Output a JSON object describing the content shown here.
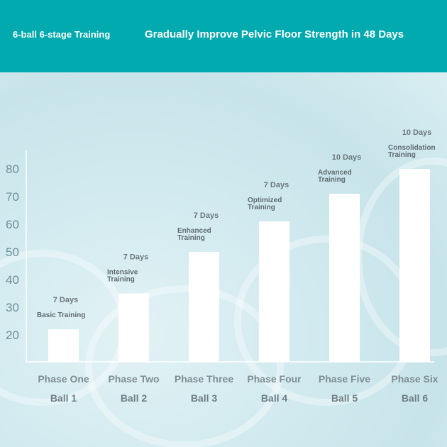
{
  "header": {
    "left_title": "6-ball 6-stage Training",
    "right_title": "Gradually Improve Pelvic Floor Strength in 48 Days",
    "background_color": "#00aaae"
  },
  "chart_data": {
    "type": "bar",
    "yticks": [
      20,
      30,
      40,
      50,
      60,
      70,
      80
    ],
    "ylim": [
      15,
      85
    ],
    "grid": false,
    "bar_color": "#ffffff",
    "bars": [
      {
        "phase": "Phase One",
        "ball": "Ball 1",
        "value": 22,
        "days": "7 Days",
        "label": [
          "Basic Training"
        ]
      },
      {
        "phase": "Phase Two",
        "ball": "Ball 2",
        "value": 35,
        "days": "7 Days",
        "label": [
          "Intensive",
          "Training"
        ]
      },
      {
        "phase": "Phase Three",
        "ball": "Ball 3",
        "value": 50,
        "days": "7 Days",
        "label": [
          "Enhanced",
          "Training"
        ]
      },
      {
        "phase": "Phase Four",
        "ball": "Ball 4",
        "value": 61,
        "days": "7 Days",
        "label": [
          "Optimized",
          "Training"
        ]
      },
      {
        "phase": "Phase Five",
        "ball": "Ball 5",
        "value": 71,
        "days": "10 Days",
        "label": [
          "Advanced",
          "Training"
        ]
      },
      {
        "phase": "Phase Six",
        "ball": "Ball 6",
        "value": 80,
        "days": "10 Days",
        "label": [
          "Consolidation",
          "Training"
        ]
      }
    ]
  }
}
